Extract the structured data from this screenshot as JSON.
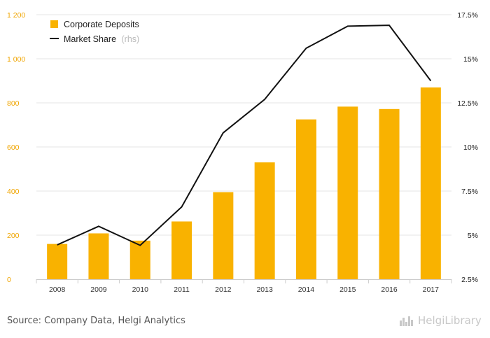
{
  "chart_data": {
    "type": "bar+line",
    "categories": [
      "2008",
      "2009",
      "2010",
      "2011",
      "2012",
      "2013",
      "2014",
      "2015",
      "2016",
      "2017"
    ],
    "series": [
      {
        "name": "Corporate Deposits",
        "type": "bar",
        "axis": "left",
        "values": [
          160,
          208,
          175,
          262,
          395,
          530,
          725,
          783,
          772,
          870
        ]
      },
      {
        "name": "Market Share",
        "name_suffix": "(rhs)",
        "type": "line",
        "axis": "right",
        "values": [
          4.45,
          5.5,
          4.42,
          6.6,
          10.8,
          12.7,
          15.6,
          16.85,
          16.9,
          13.75
        ]
      }
    ],
    "y_left": {
      "lim": [
        0,
        1200
      ],
      "ticks": [
        0,
        200,
        400,
        600,
        800,
        1000,
        1200
      ],
      "tick_labels": [
        "0",
        "200",
        "400",
        "600",
        "800",
        "1 000",
        "1 200"
      ]
    },
    "y_right": {
      "lim": [
        2.5,
        17.5
      ],
      "ticks": [
        2.5,
        5,
        7.5,
        10,
        12.5,
        15,
        17.5
      ],
      "tick_labels": [
        "2.5%",
        "5%",
        "7.5%",
        "10%",
        "12.5%",
        "15%",
        "17.5%"
      ]
    },
    "legend_position": "top-left",
    "colors": {
      "bar": "#f9b200",
      "line": "#111111",
      "left_axis_text": "#f0a500",
      "right_axis_text": "#222222"
    }
  },
  "footer": {
    "source": "Source: Company Data, Helgi Analytics",
    "brand_name": "HelgiLibrary",
    "brand_icon": "skyline-icon"
  }
}
